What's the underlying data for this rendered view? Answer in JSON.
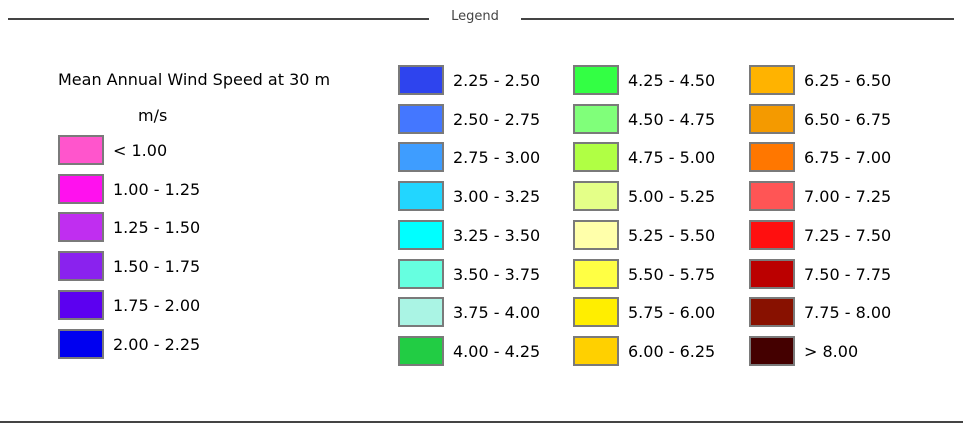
{
  "legend": {
    "heading": "Legend",
    "layer_title": "Mean Annual Wind Speed at 30 m",
    "unit": "m/s",
    "classes": [
      {
        "label": "< 1.00",
        "color": "#ff55cc"
      },
      {
        "label": "1.00 - 1.25",
        "color": "#ff11ee"
      },
      {
        "label": "1.25 - 1.50",
        "color": "#c02ef0"
      },
      {
        "label": "1.50 - 1.75",
        "color": "#8a22ee"
      },
      {
        "label": "1.75 - 2.00",
        "color": "#5c00f0"
      },
      {
        "label": "2.00 - 2.25",
        "color": "#0000f0"
      },
      {
        "label": "2.25 - 2.50",
        "color": "#2e44ee"
      },
      {
        "label": "2.50 - 2.75",
        "color": "#4477ff"
      },
      {
        "label": "2.75 - 3.00",
        "color": "#3e9dff"
      },
      {
        "label": "3.00 - 3.25",
        "color": "#22d6ff"
      },
      {
        "label": "3.25 - 3.50",
        "color": "#00ffff"
      },
      {
        "label": "3.50 - 3.75",
        "color": "#66ffe0"
      },
      {
        "label": "3.75 - 4.00",
        "color": "#aaf4e4"
      },
      {
        "label": "4.00 - 4.25",
        "color": "#22cc44"
      },
      {
        "label": "4.25 - 4.50",
        "color": "#33ff44"
      },
      {
        "label": "4.50 - 4.75",
        "color": "#80ff7a"
      },
      {
        "label": "4.75 - 5.00",
        "color": "#b0ff44"
      },
      {
        "label": "5.00 - 5.25",
        "color": "#e4ff88"
      },
      {
        "label": "5.25 - 5.50",
        "color": "#ffffaa"
      },
      {
        "label": "5.50 - 5.75",
        "color": "#ffff44"
      },
      {
        "label": "5.75 - 6.00",
        "color": "#ffee00"
      },
      {
        "label": "6.00 - 6.25",
        "color": "#ffd000"
      },
      {
        "label": "6.25 - 6.50",
        "color": "#ffb300"
      },
      {
        "label": "6.50 - 6.75",
        "color": "#f49a00"
      },
      {
        "label": "6.75 - 7.00",
        "color": "#ff7700"
      },
      {
        "label": "7.00 - 7.25",
        "color": "#ff5555"
      },
      {
        "label": "7.25 - 7.50",
        "color": "#ff0f0f"
      },
      {
        "label": "7.50 - 7.75",
        "color": "#bb0000"
      },
      {
        "label": "7.75 - 8.00",
        "color": "#881100"
      },
      {
        "label": "> 8.00",
        "color": "#440000"
      }
    ]
  }
}
